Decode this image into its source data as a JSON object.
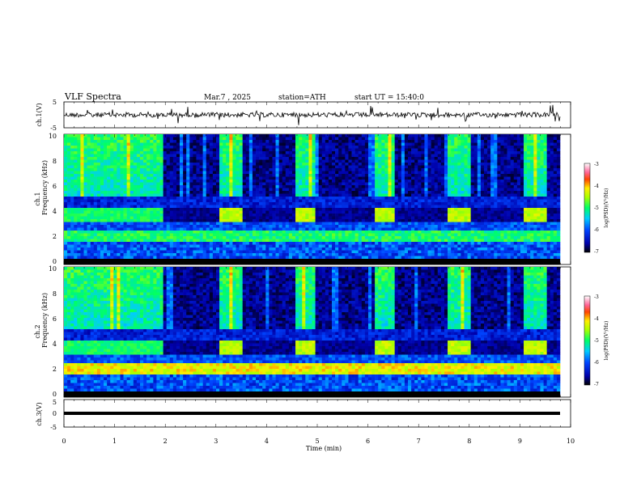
{
  "header": {
    "title": "VLF  Spectra",
    "date": "Mar.7  , 2025",
    "station": "station=ATH",
    "start": "start  UT  =   15:40:0"
  },
  "chart_data": [
    {
      "type": "line",
      "name": "ch1-waveform",
      "ylabel": "ch.1(V)",
      "ylim": [
        -5,
        5
      ],
      "yticks": [
        "5",
        "-5"
      ],
      "xlim": [
        0,
        10
      ],
      "description_values": "noisy broadband signal around 0 V with occasional spikes"
    },
    {
      "type": "heatmap",
      "name": "ch1-spectrogram",
      "ylabel": "ch.1\nFrequency (kHz)",
      "ylim": [
        0,
        10
      ],
      "yticks": [
        "0",
        "2",
        "4",
        "6",
        "8",
        "10"
      ],
      "xlim": [
        0,
        10
      ],
      "colorbar": {
        "label": "log(PSD)(V²/Hz)",
        "range": [
          -7,
          -3
        ],
        "ticks": [
          "-3",
          "-4",
          "-5",
          "-6",
          "-7"
        ]
      },
      "quiet_intervals_min": [
        [
          1.95,
          3.1
        ],
        [
          3.5,
          4.6
        ],
        [
          4.95,
          6.15
        ],
        [
          6.5,
          7.6
        ],
        [
          8.0,
          9.1
        ],
        [
          9.55,
          9.8
        ]
      ],
      "tone_bursts_min": [
        [
          3.1,
          3.5
        ],
        [
          4.6,
          4.95
        ],
        [
          6.15,
          6.5
        ],
        [
          7.6,
          8.0
        ],
        [
          9.1,
          9.55
        ]
      ]
    },
    {
      "type": "heatmap",
      "name": "ch2-spectrogram",
      "ylabel": "ch.2\nFrequency (kHz)",
      "ylim": [
        0,
        10
      ],
      "yticks": [
        "0",
        "2",
        "4",
        "6",
        "8",
        "10"
      ],
      "xlim": [
        0,
        10
      ],
      "colorbar": {
        "label": "log(PSD)(V²/Hz)",
        "range": [
          -7,
          -3
        ],
        "ticks": [
          "-3",
          "-4",
          "-5",
          "-6",
          "-7"
        ]
      },
      "quiet_intervals_min": [
        [
          1.95,
          3.1
        ],
        [
          3.5,
          4.6
        ],
        [
          4.95,
          6.15
        ],
        [
          6.5,
          7.6
        ],
        [
          8.0,
          9.1
        ],
        [
          9.55,
          9.8
        ]
      ],
      "tone_bursts_min": [
        [
          3.1,
          3.5
        ],
        [
          4.6,
          4.95
        ],
        [
          6.15,
          6.5
        ],
        [
          7.6,
          8.0
        ],
        [
          9.1,
          9.55
        ]
      ]
    },
    {
      "type": "line",
      "name": "ch3-waveform",
      "ylabel": "ch.3(V)",
      "ylim": [
        -5,
        5
      ],
      "yticks": [
        "5",
        "0",
        "-5"
      ],
      "xlim": [
        0,
        10
      ],
      "xlabel": "Time  (min)",
      "xticks": [
        "0",
        "1",
        "2",
        "3",
        "4",
        "5",
        "6",
        "7",
        "8",
        "9",
        "10"
      ]
    }
  ]
}
